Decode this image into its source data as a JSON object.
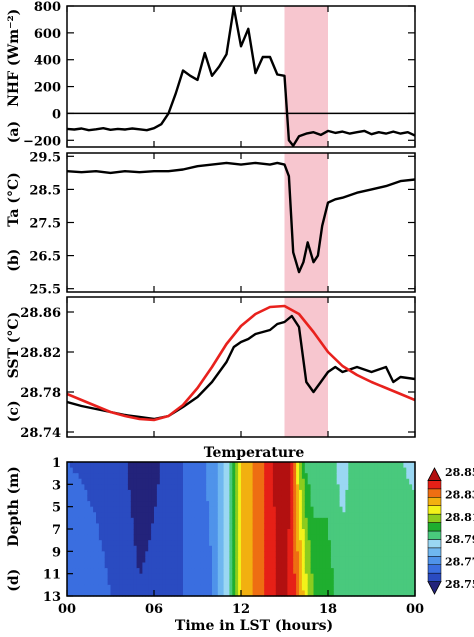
{
  "figure": {
    "panels": [
      "(a)",
      "(b)",
      "(c)",
      "(d)"
    ],
    "contour_title": "Temperature",
    "x_axis_label": "Time in LST (hours)",
    "x_ticks": [
      "00",
      "06",
      "12",
      "18",
      "00"
    ],
    "highlight": {
      "start_hour": 15,
      "end_hour": 18,
      "color": "#f7c6cf"
    }
  },
  "chart_data": [
    {
      "type": "line",
      "panel": "(a)",
      "ylabel": "NHF (Wm⁻²)",
      "xlim": [
        0,
        24
      ],
      "ylim": [
        -250,
        800
      ],
      "yticks": [
        "800",
        "600",
        "400",
        "200",
        "0",
        "−200"
      ],
      "zero_line": true,
      "series": [
        {
          "color": "#000000",
          "x": [
            0,
            0.5,
            1,
            1.5,
            2,
            2.5,
            3,
            3.5,
            4,
            4.5,
            5,
            5.5,
            6,
            6.5,
            7,
            7.5,
            8,
            8.5,
            9,
            9.5,
            10,
            10.5,
            11,
            11.5,
            12,
            12.5,
            13,
            13.5,
            14,
            14.5,
            15,
            15.3,
            15.6,
            16,
            16.5,
            17,
            17.5,
            18,
            18.5,
            19,
            19.5,
            20,
            20.5,
            21,
            21.5,
            22,
            22.5,
            23,
            23.5,
            24
          ],
          "y": [
            -115,
            -120,
            -112,
            -125,
            -118,
            -110,
            -122,
            -115,
            -120,
            -112,
            -118,
            -125,
            -110,
            -80,
            0,
            150,
            320,
            280,
            250,
            450,
            280,
            350,
            440,
            790,
            500,
            630,
            300,
            420,
            420,
            290,
            280,
            -200,
            -240,
            -170,
            -150,
            -140,
            -160,
            -130,
            -145,
            -135,
            -150,
            -140,
            -130,
            -155,
            -140,
            -150,
            -135,
            -150,
            -140,
            -165
          ]
        }
      ]
    },
    {
      "type": "line",
      "panel": "(b)",
      "ylabel": "Ta (°C)",
      "xlim": [
        0,
        24
      ],
      "ylim": [
        25.4,
        29.6
      ],
      "yticks": [
        "29.5",
        "28.5",
        "27.5",
        "26.5",
        "25.5"
      ],
      "series": [
        {
          "color": "#000000",
          "x": [
            0,
            1,
            2,
            3,
            4,
            5,
            6,
            7,
            8,
            9,
            10,
            11,
            12,
            13,
            14,
            14.5,
            15,
            15.3,
            15.6,
            16,
            16.3,
            16.6,
            17,
            17.3,
            17.6,
            18,
            18.5,
            19,
            20,
            21,
            22,
            23,
            24
          ],
          "y": [
            29.05,
            29.02,
            29.05,
            29.0,
            29.05,
            29.02,
            29.05,
            29.05,
            29.1,
            29.2,
            29.25,
            29.3,
            29.25,
            29.3,
            29.25,
            29.3,
            29.25,
            28.9,
            26.6,
            26.0,
            26.3,
            26.9,
            26.3,
            26.5,
            27.4,
            28.1,
            28.2,
            28.25,
            28.4,
            28.5,
            28.6,
            28.75,
            28.8
          ]
        }
      ]
    },
    {
      "type": "line",
      "panel": "(c)",
      "ylabel": "SST (°C)",
      "xlim": [
        0,
        24
      ],
      "ylim": [
        28.735,
        28.875
      ],
      "yticks": [
        "28.86",
        "28.82",
        "28.78",
        "28.74"
      ],
      "series": [
        {
          "color": "#000000",
          "x": [
            0,
            1,
            2,
            3,
            4,
            5,
            6,
            7,
            8,
            9,
            10,
            11,
            11.5,
            12,
            12.5,
            13,
            13.5,
            14,
            14.5,
            15,
            15.5,
            16,
            16.5,
            17,
            17.5,
            18,
            18.5,
            19,
            20,
            21,
            22,
            22.5,
            23,
            24
          ],
          "y": [
            28.77,
            28.766,
            28.763,
            28.76,
            28.757,
            28.755,
            28.753,
            28.756,
            28.765,
            28.775,
            28.79,
            28.81,
            28.825,
            28.83,
            28.833,
            28.838,
            28.84,
            28.842,
            28.848,
            28.85,
            28.856,
            28.845,
            28.79,
            28.78,
            28.79,
            28.8,
            28.805,
            28.8,
            28.805,
            28.8,
            28.805,
            28.79,
            28.795,
            28.793
          ]
        },
        {
          "color": "#e8211d",
          "x": [
            0,
            1,
            2,
            3,
            4,
            5,
            6,
            7,
            8,
            9,
            10,
            11,
            12,
            13,
            14,
            15,
            16,
            17,
            18,
            19,
            20,
            21,
            22,
            23,
            24
          ],
          "y": [
            28.778,
            28.772,
            28.766,
            28.76,
            28.756,
            28.753,
            28.752,
            28.756,
            28.767,
            28.784,
            28.805,
            28.828,
            28.846,
            28.858,
            28.865,
            28.866,
            28.858,
            28.84,
            28.82,
            28.806,
            28.797,
            28.79,
            28.784,
            28.778,
            28.772
          ]
        }
      ]
    },
    {
      "type": "heatmap",
      "panel": "(d)",
      "title": "Temperature",
      "ylabel": "Depth (m)",
      "yticks": [
        "1",
        "3",
        "5",
        "7",
        "9",
        "11",
        "13"
      ],
      "colorbar": {
        "labels": [
          "28.85",
          "28.83",
          "28.81",
          "28.79",
          "28.77",
          "28.75"
        ],
        "min": 28.75,
        "max": 28.855,
        "colors": [
          "#23237b",
          "#2a4bc1",
          "#3a6ee0",
          "#4f93ea",
          "#6fb7f0",
          "#9ad7f3",
          "#49c97d",
          "#1fae2f",
          "#8ccc1e",
          "#f2f21a",
          "#f2b010",
          "#ee6e12",
          "#e62017",
          "#b21010"
        ]
      },
      "x_hours": [
        0,
        2,
        4,
        5,
        6,
        8,
        10,
        11,
        11.5,
        12,
        12.5,
        13,
        13.5,
        14,
        14.5,
        15,
        15.5,
        16,
        16.5,
        17,
        18,
        19,
        20,
        21,
        22,
        23,
        24
      ],
      "surface_values": [
        28.765,
        28.762,
        28.758,
        28.752,
        28.755,
        28.765,
        28.775,
        28.79,
        28.81,
        28.825,
        28.83,
        28.835,
        28.84,
        28.845,
        28.85,
        28.853,
        28.845,
        28.815,
        28.8,
        28.795,
        28.8,
        28.79,
        28.8,
        28.795,
        28.8,
        28.795,
        28.793
      ],
      "bottom_values": [
        28.772,
        28.768,
        28.762,
        28.758,
        28.76,
        28.765,
        28.772,
        28.79,
        28.81,
        28.825,
        28.83,
        28.835,
        28.84,
        28.845,
        28.848,
        28.85,
        28.845,
        28.835,
        28.82,
        28.81,
        28.805,
        28.8,
        28.8,
        28.8,
        28.8,
        28.8,
        28.8
      ]
    }
  ]
}
